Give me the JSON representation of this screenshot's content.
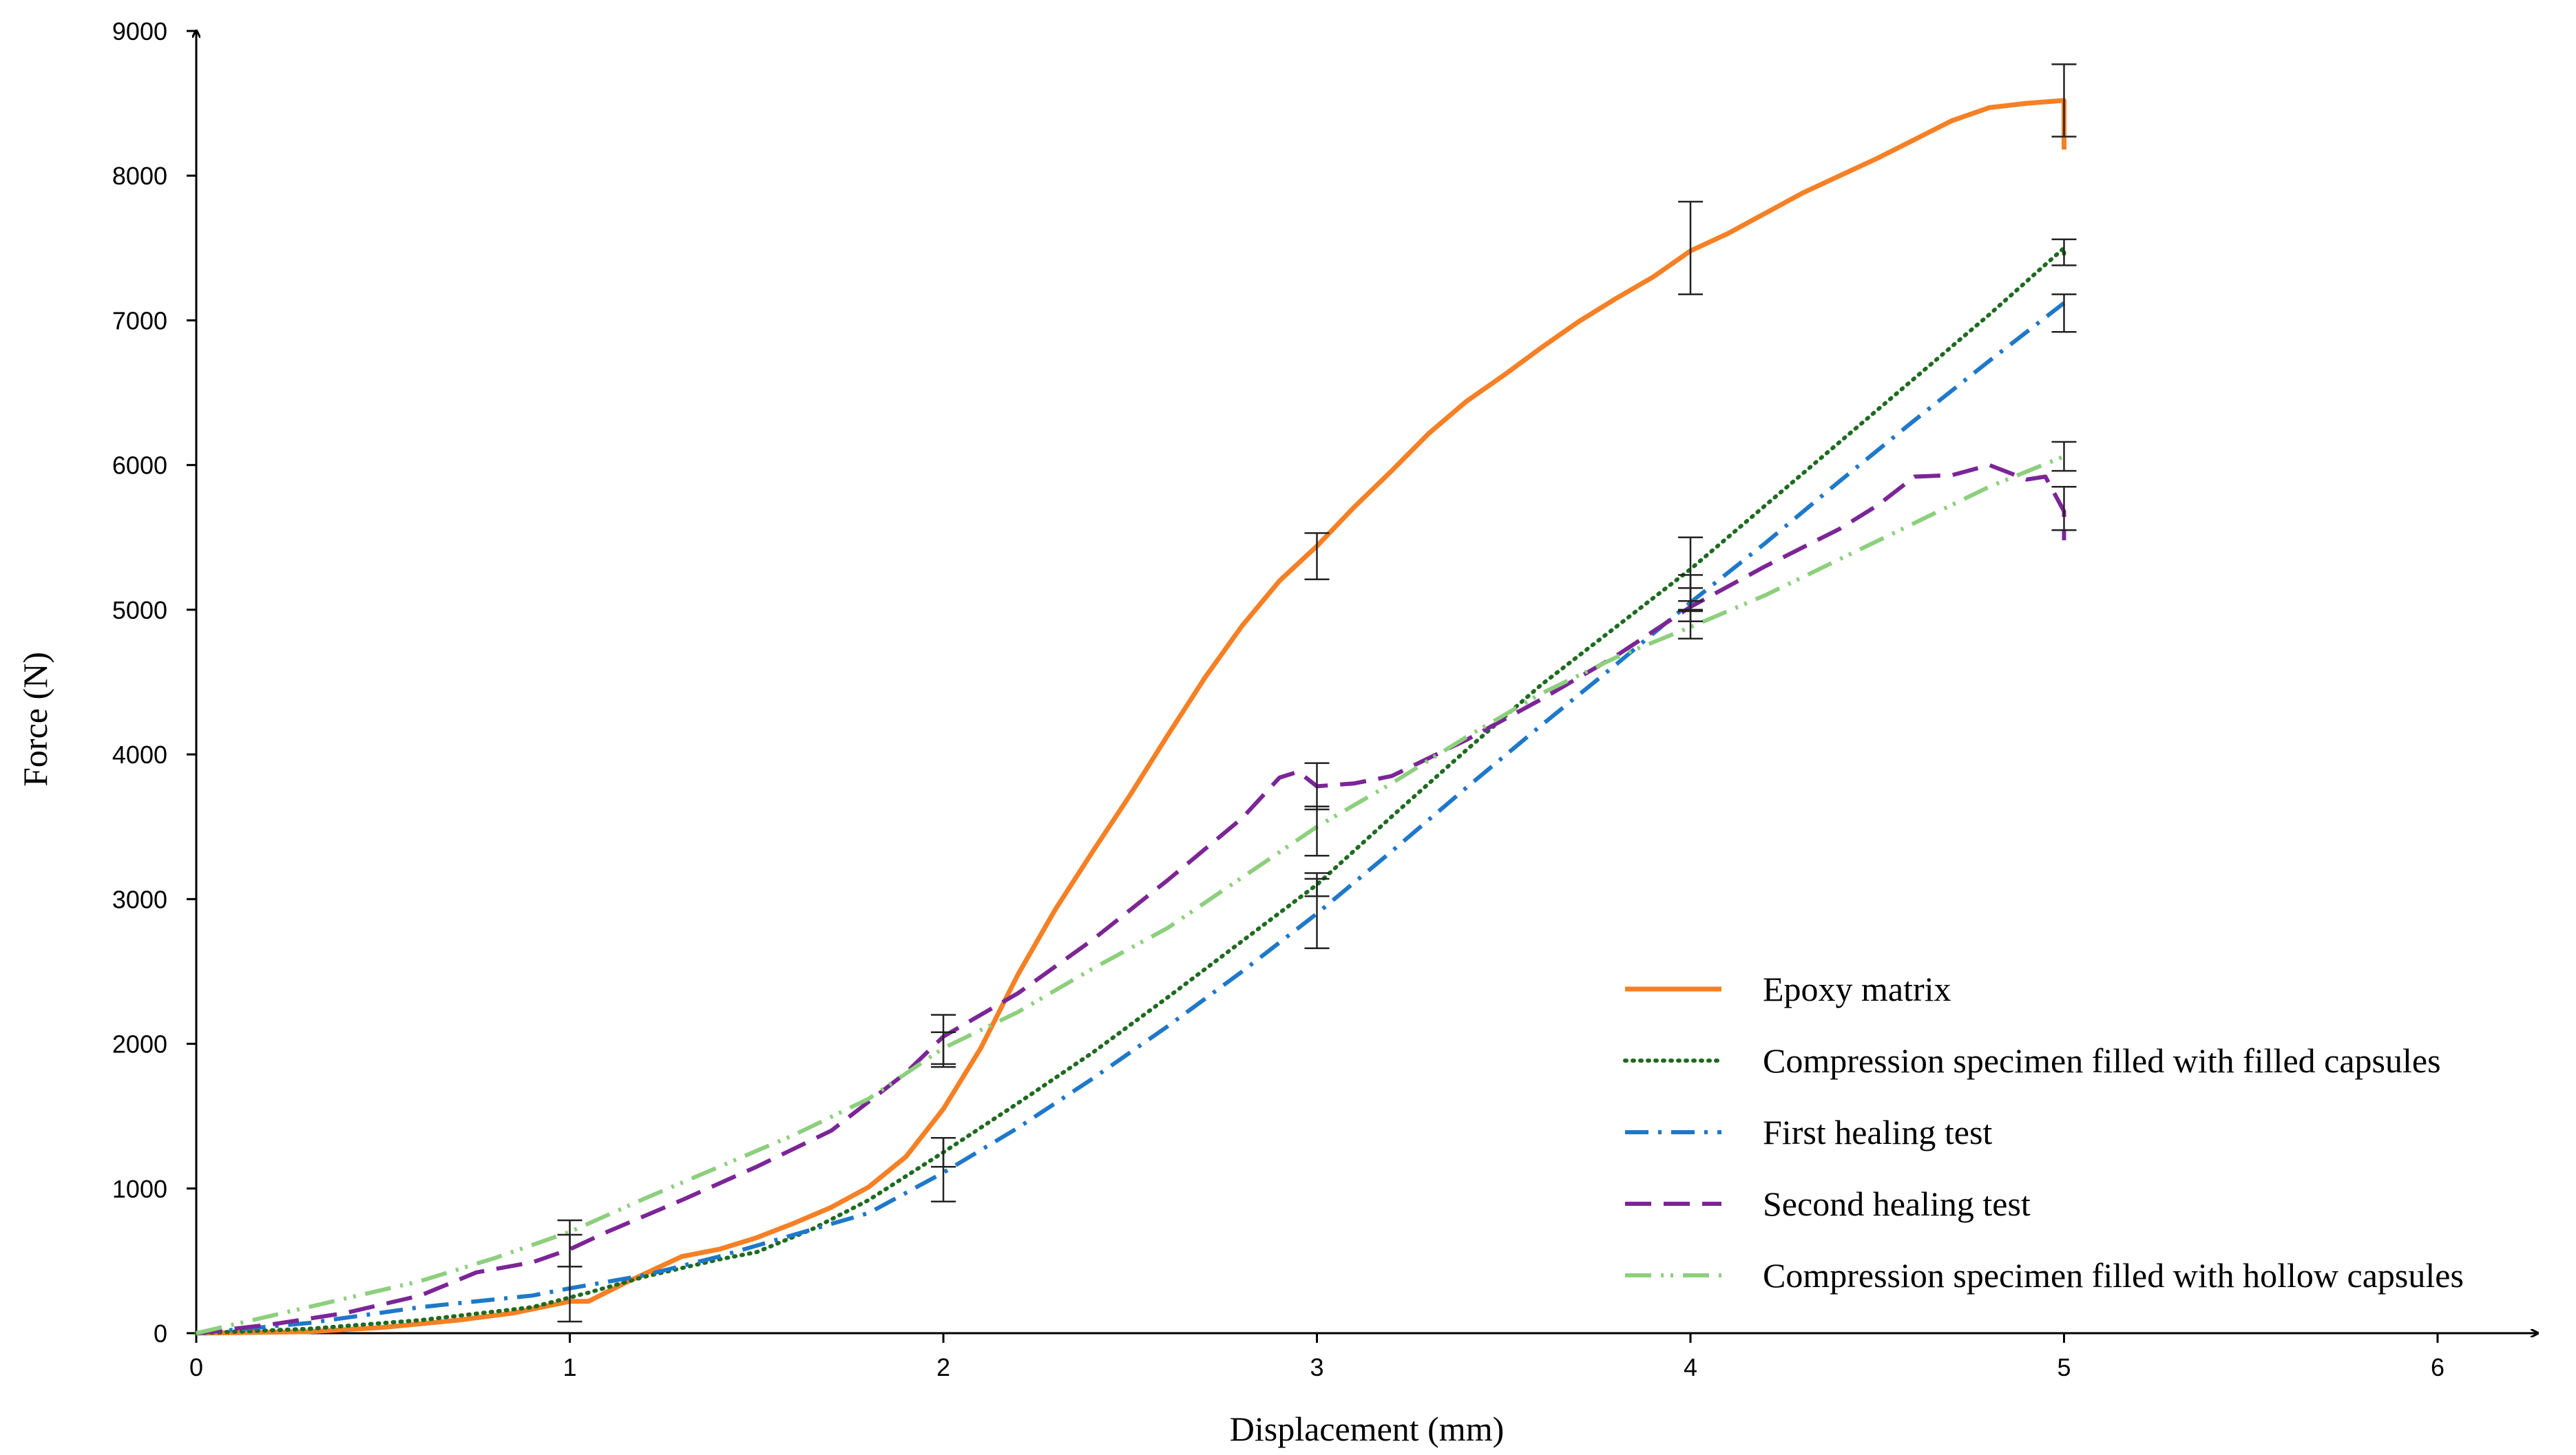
{
  "chart_data": {
    "type": "line",
    "title": "",
    "xlabel": "Displacement (mm)",
    "ylabel": "Force (N)",
    "xlim": [
      0,
      6
    ],
    "ylim": [
      0,
      9000
    ],
    "xticks": [
      "0",
      "1",
      "2",
      "3",
      "4",
      "5",
      "6"
    ],
    "yticks": [
      "0",
      "1000",
      "2000",
      "3000",
      "4000",
      "5000",
      "6000",
      "7000",
      "8000",
      "9000"
    ],
    "grid": false,
    "legend_position": "bottom-right",
    "series": [
      {
        "name": "Epoxy matrix",
        "color": "#f58025",
        "style": "solid",
        "points": [
          [
            0,
            0
          ],
          [
            0.3,
            10
          ],
          [
            0.5,
            40
          ],
          [
            0.7,
            90
          ],
          [
            0.85,
            140
          ],
          [
            1.0,
            220
          ],
          [
            1.05,
            220
          ],
          [
            1.15,
            350
          ],
          [
            1.3,
            530
          ],
          [
            1.4,
            580
          ],
          [
            1.5,
            660
          ],
          [
            1.6,
            760
          ],
          [
            1.7,
            870
          ],
          [
            1.8,
            1010
          ],
          [
            1.9,
            1220
          ],
          [
            2.0,
            1550
          ],
          [
            2.1,
            1970
          ],
          [
            2.2,
            2480
          ],
          [
            2.3,
            2930
          ],
          [
            2.4,
            3330
          ],
          [
            2.5,
            3720
          ],
          [
            2.6,
            4130
          ],
          [
            2.7,
            4530
          ],
          [
            2.8,
            4890
          ],
          [
            2.9,
            5200
          ],
          [
            3.0,
            5440
          ],
          [
            3.1,
            5710
          ],
          [
            3.2,
            5960
          ],
          [
            3.3,
            6220
          ],
          [
            3.4,
            6440
          ],
          [
            3.5,
            6620
          ],
          [
            3.6,
            6810
          ],
          [
            3.7,
            6990
          ],
          [
            3.8,
            7150
          ],
          [
            3.9,
            7300
          ],
          [
            4.0,
            7480
          ],
          [
            4.1,
            7600
          ],
          [
            4.2,
            7740
          ],
          [
            4.3,
            7880
          ],
          [
            4.4,
            8000
          ],
          [
            4.5,
            8120
          ],
          [
            4.6,
            8250
          ],
          [
            4.7,
            8380
          ],
          [
            4.8,
            8470
          ],
          [
            4.9,
            8500
          ],
          [
            4.95,
            8510
          ],
          [
            5.0,
            8520
          ],
          [
            5.0,
            8180
          ]
        ],
        "error_bars": [
          {
            "x": 3.0,
            "y": 5370,
            "err": 160
          },
          {
            "x": 4.0,
            "y": 7500,
            "err": 320
          },
          {
            "x": 5.0,
            "y": 8520,
            "err": 250
          }
        ]
      },
      {
        "name": "Compression specimen filled with filled capsules",
        "color": "#1e6b20",
        "style": "dotted",
        "points": [
          [
            0,
            0
          ],
          [
            0.3,
            30
          ],
          [
            0.6,
            90
          ],
          [
            0.9,
            180
          ],
          [
            1.05,
            280
          ],
          [
            1.2,
            390
          ],
          [
            1.4,
            510
          ],
          [
            1.5,
            560
          ],
          [
            1.65,
            720
          ],
          [
            1.8,
            920
          ],
          [
            2.0,
            1250
          ],
          [
            2.2,
            1590
          ],
          [
            2.4,
            1940
          ],
          [
            2.6,
            2320
          ],
          [
            2.8,
            2710
          ],
          [
            3.0,
            3100
          ],
          [
            3.2,
            3570
          ],
          [
            3.4,
            4030
          ],
          [
            3.6,
            4480
          ],
          [
            3.8,
            4880
          ],
          [
            4.0,
            5280
          ],
          [
            4.2,
            5720
          ],
          [
            4.4,
            6160
          ],
          [
            4.6,
            6600
          ],
          [
            4.8,
            7040
          ],
          [
            5.0,
            7500
          ],
          [
            5.0,
            7420
          ]
        ],
        "error_bars": [
          {
            "x": 2.0,
            "y": 1250,
            "err": 100
          },
          {
            "x": 3.0,
            "y": 3100,
            "err": 80
          },
          {
            "x": 4.0,
            "y": 5280,
            "err": 220
          },
          {
            "x": 5.0,
            "y": 7470,
            "err": 90
          }
        ]
      },
      {
        "name": "First healing test",
        "color": "#1f78c8",
        "style": "dash-dot",
        "points": [
          [
            0,
            0
          ],
          [
            0.3,
            70
          ],
          [
            0.6,
            180
          ],
          [
            0.9,
            260
          ],
          [
            1.0,
            310
          ],
          [
            1.2,
            400
          ],
          [
            1.4,
            530
          ],
          [
            1.6,
            680
          ],
          [
            1.8,
            830
          ],
          [
            2.0,
            1110
          ],
          [
            2.2,
            1420
          ],
          [
            2.4,
            1760
          ],
          [
            2.6,
            2120
          ],
          [
            2.8,
            2500
          ],
          [
            3.0,
            2900
          ],
          [
            3.2,
            3330
          ],
          [
            3.4,
            3770
          ],
          [
            3.6,
            4200
          ],
          [
            3.8,
            4620
          ],
          [
            4.0,
            5050
          ],
          [
            4.2,
            5460
          ],
          [
            4.4,
            5890
          ],
          [
            4.6,
            6310
          ],
          [
            4.8,
            6720
          ],
          [
            5.0,
            7120
          ]
        ],
        "error_bars": [
          {
            "x": 2.0,
            "y": 1130,
            "err": 220
          },
          {
            "x": 3.0,
            "y": 2900,
            "err": 240
          },
          {
            "x": 4.0,
            "y": 5070,
            "err": 80
          },
          {
            "x": 5.0,
            "y": 7050,
            "err": 130
          }
        ]
      },
      {
        "name": "Second healing test",
        "color": "#7b2596",
        "style": "dashed",
        "points": [
          [
            0,
            0
          ],
          [
            0.2,
            60
          ],
          [
            0.4,
            140
          ],
          [
            0.6,
            260
          ],
          [
            0.75,
            420
          ],
          [
            0.9,
            490
          ],
          [
            1.0,
            580
          ],
          [
            1.1,
            700
          ],
          [
            1.3,
            920
          ],
          [
            1.5,
            1150
          ],
          [
            1.7,
            1400
          ],
          [
            1.9,
            1800
          ],
          [
            2.0,
            2050
          ],
          [
            2.2,
            2350
          ],
          [
            2.4,
            2720
          ],
          [
            2.6,
            3130
          ],
          [
            2.8,
            3560
          ],
          [
            2.9,
            3840
          ],
          [
            2.95,
            3880
          ],
          [
            3.0,
            3780
          ],
          [
            3.1,
            3800
          ],
          [
            3.2,
            3850
          ],
          [
            3.4,
            4100
          ],
          [
            3.6,
            4380
          ],
          [
            3.8,
            4680
          ],
          [
            4.0,
            5020
          ],
          [
            4.2,
            5300
          ],
          [
            4.4,
            5560
          ],
          [
            4.5,
            5720
          ],
          [
            4.6,
            5920
          ],
          [
            4.7,
            5930
          ],
          [
            4.8,
            6000
          ],
          [
            4.9,
            5900
          ],
          [
            4.95,
            5920
          ],
          [
            5.0,
            5680
          ],
          [
            5.0,
            5480
          ]
        ],
        "error_bars": [
          {
            "x": 1.0,
            "y": 620,
            "err": 160
          },
          {
            "x": 2.0,
            "y": 2030,
            "err": 170
          },
          {
            "x": 3.0,
            "y": 3780,
            "err": 160
          },
          {
            "x": 4.0,
            "y": 5080,
            "err": 160
          },
          {
            "x": 5.0,
            "y": 5700,
            "err": 150
          }
        ]
      },
      {
        "name": "Compression specimen filled with hollow capsules",
        "color": "#8dcf7d",
        "style": "dash-dot-dot",
        "points": [
          [
            0,
            0
          ],
          [
            0.2,
            120
          ],
          [
            0.4,
            240
          ],
          [
            0.6,
            360
          ],
          [
            0.8,
            520
          ],
          [
            1.0,
            700
          ],
          [
            1.2,
            930
          ],
          [
            1.4,
            1150
          ],
          [
            1.6,
            1370
          ],
          [
            1.8,
            1620
          ],
          [
            2.0,
            1970
          ],
          [
            2.2,
            2220
          ],
          [
            2.4,
            2520
          ],
          [
            2.6,
            2800
          ],
          [
            2.8,
            3150
          ],
          [
            3.0,
            3500
          ],
          [
            3.2,
            3800
          ],
          [
            3.4,
            4120
          ],
          [
            3.6,
            4420
          ],
          [
            3.8,
            4670
          ],
          [
            4.0,
            4880
          ],
          [
            4.2,
            5100
          ],
          [
            4.4,
            5350
          ],
          [
            4.6,
            5600
          ],
          [
            4.8,
            5850
          ],
          [
            5.0,
            6060
          ]
        ],
        "error_bars": [
          {
            "x": 1.0,
            "y": 380,
            "err": 300
          },
          {
            "x": 2.0,
            "y": 1960,
            "err": 120
          },
          {
            "x": 3.0,
            "y": 3470,
            "err": 170
          },
          {
            "x": 4.0,
            "y": 4900,
            "err": 100
          },
          {
            "x": 5.0,
            "y": 6060,
            "err": 100
          }
        ]
      }
    ]
  }
}
